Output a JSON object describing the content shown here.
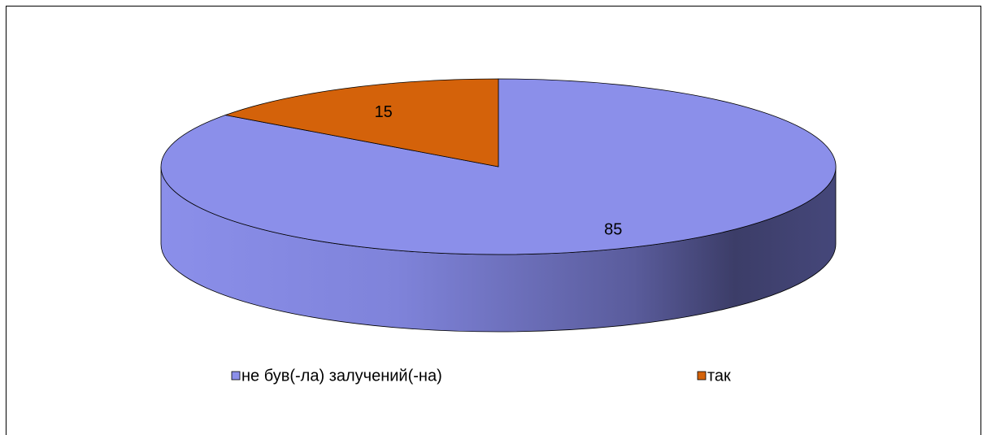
{
  "chart_data": {
    "type": "pie",
    "categories": [
      "не був(-ла) залучений(-на)",
      "так"
    ],
    "values": [
      85,
      15
    ],
    "colors": [
      "#8b8fea",
      "#d4620a"
    ]
  }
}
